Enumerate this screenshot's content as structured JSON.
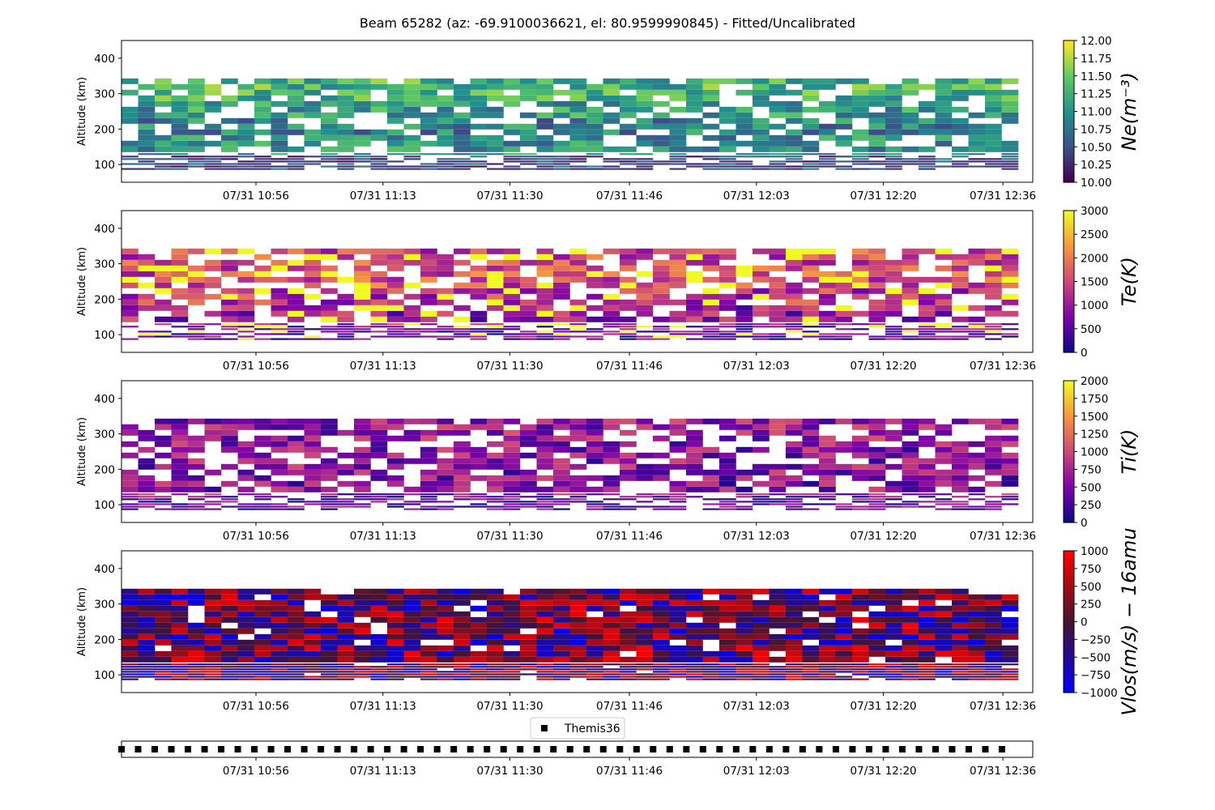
{
  "figure": {
    "title": "Beam 65282 (az: -69.9100036621, el: 80.9599990845) - Fitted/Uncalibrated"
  },
  "chart_data": [
    {
      "type": "heatmap",
      "id": "ne",
      "title": "",
      "ylabel": "Altitude (km)",
      "colorbar_label": "Ne(m⁻³)",
      "colormap": "viridis",
      "clim": [
        10.0,
        12.0
      ],
      "colorbar_ticks": [
        "10.00",
        "10.25",
        "10.50",
        "10.75",
        "11.00",
        "11.25",
        "11.50",
        "11.75",
        "12.00"
      ],
      "ylim": [
        50,
        450
      ],
      "yticks": [
        "100",
        "200",
        "300",
        "400"
      ],
      "altitude_top_km": 340,
      "x_ticks": [
        "07/31 10:56",
        "07/31 11:13",
        "07/31 11:30",
        "07/31 11:46",
        "07/31 12:03",
        "07/31 12:20",
        "07/31 12:36"
      ],
      "typical_values_by_altitude": {
        "100": 10.5,
        "150": 11.0,
        "200": 10.9,
        "250": 11.1,
        "300": 11.3
      },
      "fill_fraction": 0.75
    },
    {
      "type": "heatmap",
      "id": "te",
      "title": "",
      "ylabel": "Altitude (km)",
      "colorbar_label": "Te(K)",
      "colormap": "plasma",
      "clim": [
        0,
        3000
      ],
      "colorbar_ticks": [
        "0",
        "500",
        "1000",
        "1500",
        "2000",
        "2500",
        "3000"
      ],
      "ylim": [
        50,
        450
      ],
      "yticks": [
        "100",
        "200",
        "300",
        "400"
      ],
      "altitude_top_km": 340,
      "x_ticks": [
        "07/31 10:56",
        "07/31 11:13",
        "07/31 11:30",
        "07/31 11:46",
        "07/31 12:03",
        "07/31 12:20",
        "07/31 12:36"
      ],
      "typical_values_by_altitude": {
        "100": 600,
        "150": 1000,
        "200": 1300,
        "250": 1600,
        "300": 1500
      },
      "fill_fraction": 0.72
    },
    {
      "type": "heatmap",
      "id": "ti",
      "title": "",
      "ylabel": "Altitude (km)",
      "colorbar_label": "Ti(K)",
      "colormap": "plasma",
      "clim": [
        0,
        2000
      ],
      "colorbar_ticks": [
        "0",
        "250",
        "500",
        "750",
        "1000",
        "1250",
        "1500",
        "1750",
        "2000"
      ],
      "ylim": [
        50,
        450
      ],
      "yticks": [
        "100",
        "200",
        "300",
        "400"
      ],
      "altitude_top_km": 340,
      "x_ticks": [
        "07/31 10:56",
        "07/31 11:13",
        "07/31 11:30",
        "07/31 11:46",
        "07/31 12:03",
        "07/31 12:20",
        "07/31 12:36"
      ],
      "typical_values_by_altitude": {
        "100": 400,
        "150": 550,
        "200": 600,
        "250": 600,
        "300": 650
      },
      "fill_fraction": 0.68
    },
    {
      "type": "heatmap",
      "id": "vlos",
      "title": "",
      "ylabel": "Altitude (km)",
      "colorbar_label": "Vlos(m/s) − 16amu",
      "colormap": "bwr-dark",
      "clim": [
        -1000,
        1000
      ],
      "colorbar_ticks": [
        "−1000",
        "−750",
        "−500",
        "−250",
        "0",
        "250",
        "500",
        "750",
        "1000"
      ],
      "ylim": [
        50,
        450
      ],
      "yticks": [
        "100",
        "200",
        "300",
        "400"
      ],
      "altitude_top_km": 340,
      "x_ticks": [
        "07/31 10:56",
        "07/31 11:13",
        "07/31 11:30",
        "07/31 11:46",
        "07/31 12:03",
        "07/31 12:20",
        "07/31 12:36"
      ],
      "typical_values_by_altitude": {
        "100": 0,
        "150": 100,
        "200": 0,
        "250": 50,
        "300": 0
      },
      "fill_fraction": 0.92
    },
    {
      "type": "scatter",
      "id": "themis",
      "legend": [
        "Themis36"
      ],
      "legend_position": "top-center",
      "marker": "square",
      "color": "#000000",
      "x_ticks": [
        "07/31 10:56",
        "07/31 11:13",
        "07/31 11:30",
        "07/31 11:46",
        "07/31 12:03",
        "07/31 12:20",
        "07/31 12:36"
      ],
      "count": 54
    }
  ]
}
